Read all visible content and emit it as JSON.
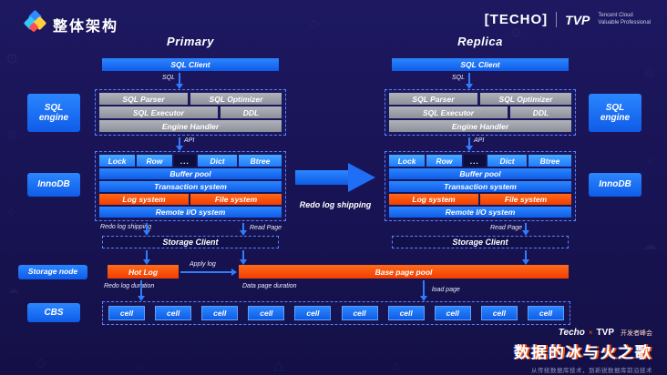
{
  "header": {
    "page_title": "整体架构",
    "techo_logo": "[TECHO]",
    "tvp_logo": "TVP",
    "tvp_tagline_line1": "Tencent Cloud",
    "tvp_tagline_line2": "Valuable Professional"
  },
  "columns": {
    "primary_title": "Primary",
    "replica_title": "Replica"
  },
  "side_labels": {
    "sql_engine": "SQL engine",
    "innodb": "InnoDB",
    "storage_node": "Storage node",
    "cbs": "CBS"
  },
  "stack": {
    "sql_client": "SQL Client",
    "sql_label": "SQL",
    "sql_parser": "SQL Parser",
    "sql_optimizer": "SQL Optimizer",
    "sql_executor": "SQL Executor",
    "ddl": "DDL",
    "engine_handler": "Engine Handler",
    "api_label": "API",
    "lock": "Lock",
    "row": "Row",
    "ellipsis": "...",
    "dict": "Dict",
    "btree": "Btree",
    "buffer_pool": "Buffer pool",
    "transaction_system": "Transaction system",
    "log_system": "Log system",
    "file_system": "File system",
    "remote_io_system": "Remote I/O system",
    "storage_client": "Storage Client"
  },
  "annotations": {
    "redo_log_shipping_small": "Redo log  shipping",
    "read_page": "Read Page",
    "redo_log_shipping_arrow": "Redo log shipping",
    "apply_log": "Apply log",
    "redo_log_duration": "Redo log  duration",
    "data_page_duration": "Data page  duration",
    "load_page": "load page"
  },
  "storage": {
    "hot_log": "Hot Log",
    "base_page_pool": "Base page pool",
    "cell_label": "cell",
    "cell_count": 10
  },
  "footer": {
    "brand_techo": "Techo",
    "brand_times": "×",
    "brand_tvp": "TVP",
    "brand_summit": "开发者峰会",
    "title": "数据的冰与火之歌",
    "subtitle": "从传统数据库技术，到新锐数据库前沿技术"
  },
  "background": {
    "pattern_icons": [
      "⚙",
      "◎",
      "✧",
      "☁",
      "◇",
      "○",
      "△",
      "⌂"
    ]
  }
}
